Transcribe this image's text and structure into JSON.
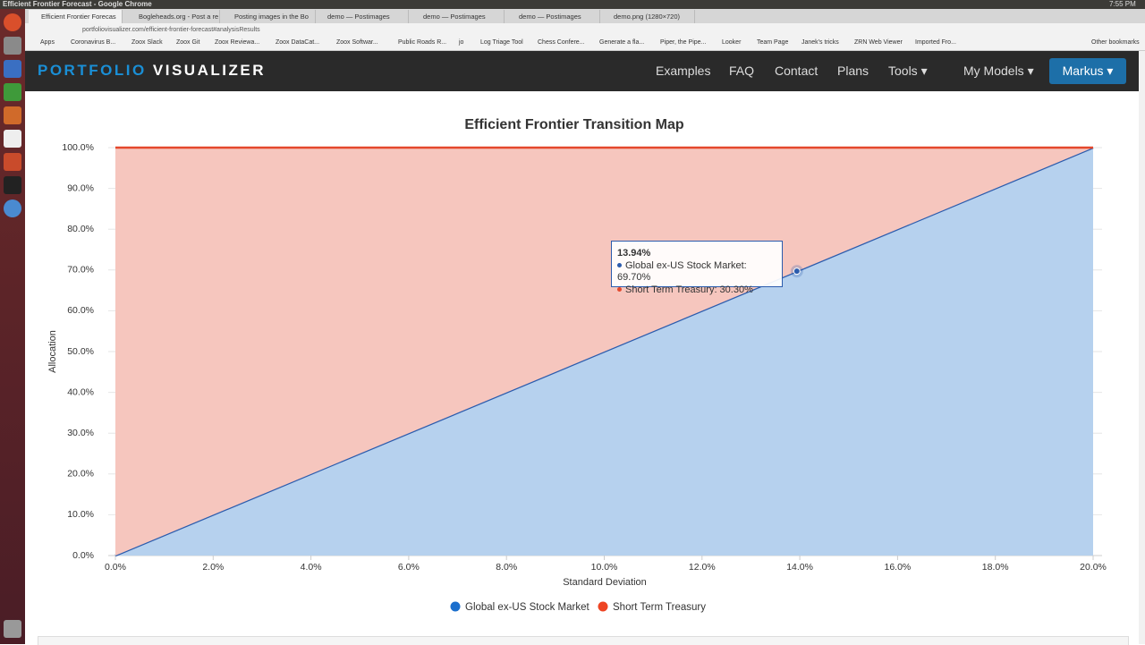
{
  "window_title": "Efficient Frontier Forecast - Google Chrome",
  "clock": "7:55 PM",
  "tabs": [
    "Efficient Frontier Forecas",
    "Bogleheads.org - Post a re",
    "Posting images in the Bo",
    "demo — Postimages",
    "demo — Postimages",
    "demo — Postimages",
    "demo.png (1280×720)"
  ],
  "url": "portfoliovisualizer.com/efficient-frontier-forecast#analysisResults",
  "bookmarks": [
    "Apps",
    "Coronavirus B...",
    "Zoox Slack",
    "Zoox Git",
    "Zoox Reviewa...",
    "Zoox DataCat...",
    "Zoox Softwar...",
    "Public Roads R...",
    "jo",
    "Log Triage Tool",
    "Chess Confere...",
    "Generate a fla...",
    "Piper, the Pipe...",
    "Looker",
    "Team Page",
    "Janek's tricks",
    "ZRN Web Viewer",
    "Imported Fro...",
    "Other bookmarks"
  ],
  "nav": {
    "brand": [
      "PORTFOLIO",
      "VISUALIZER"
    ],
    "links": [
      "Examples",
      "FAQ",
      "Contact",
      "Plans",
      "Tools",
      "My Models"
    ],
    "user": "Markus"
  },
  "chart_data": {
    "type": "stacked-area",
    "title": "Efficient Frontier Transition Map",
    "x_label": "Standard Deviation",
    "y_label": "Allocation",
    "x": [
      0,
      13.94,
      20
    ],
    "series": [
      {
        "name": "Global ex-US Stock Market",
        "color": "#2c5cad",
        "fill": "#b6d1ee",
        "legend_color": "#1b6fcd",
        "values": [
          0,
          69.7,
          100
        ]
      },
      {
        "name": "Short Term Treasury",
        "color": "#e4482c",
        "fill": "#f6c6be",
        "legend_color": "#ee4423",
        "values": [
          100,
          30.3,
          0
        ]
      }
    ],
    "xlim": [
      0,
      20
    ],
    "xticks": [
      {
        "value": 0,
        "label": "0.0%"
      },
      {
        "value": 2,
        "label": "2.0%"
      },
      {
        "value": 4,
        "label": "4.0%"
      },
      {
        "value": 6,
        "label": "6.0%"
      },
      {
        "value": 8,
        "label": "8.0%"
      },
      {
        "value": 10,
        "label": "10.0%"
      },
      {
        "value": 12,
        "label": "12.0%"
      },
      {
        "value": 14,
        "label": "14.0%"
      },
      {
        "value": 16,
        "label": "16.0%"
      },
      {
        "value": 18,
        "label": "18.0%"
      },
      {
        "value": 20,
        "label": "20.0%"
      }
    ],
    "ylim": [
      0,
      100
    ],
    "yticks": [
      {
        "value": 0,
        "label": "0.0%"
      },
      {
        "value": 10,
        "label": "10.0%"
      },
      {
        "value": 20,
        "label": "20.0%"
      },
      {
        "value": 30,
        "label": "30.0%"
      },
      {
        "value": 40,
        "label": "40.0%"
      },
      {
        "value": 50,
        "label": "50.0%"
      },
      {
        "value": 60,
        "label": "60.0%"
      },
      {
        "value": 70,
        "label": "70.0%"
      },
      {
        "value": 80,
        "label": "80.0%"
      },
      {
        "value": 90,
        "label": "90.0%"
      },
      {
        "value": 100,
        "label": "100.0%"
      }
    ],
    "grid": true,
    "legend": "bottom",
    "tooltip": {
      "index": 1,
      "title": "13.94%",
      "items": [
        "Global ex-US Stock Market: 69.70%",
        "Short Term Treasury: 30.30%"
      ]
    }
  }
}
